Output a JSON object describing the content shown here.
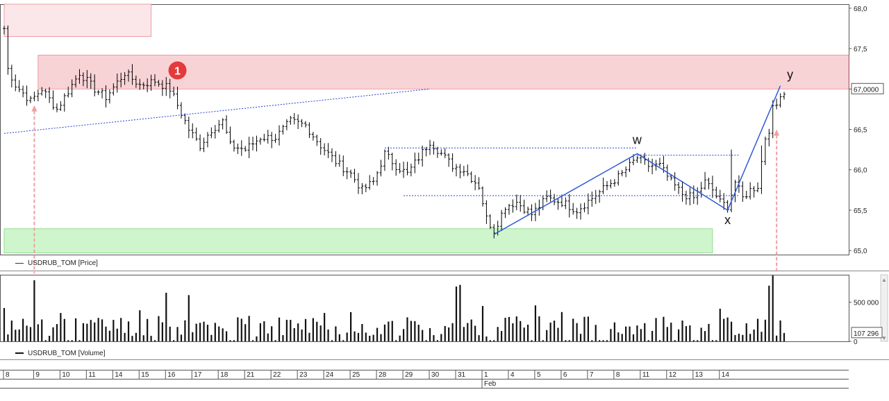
{
  "chart_data": [
    {
      "type": "ohlc",
      "series_label": "USDRUB_TOM [Price]",
      "y_ticks": [
        "68,0",
        "67,5",
        "67,0000",
        "66,5",
        "66,0",
        "65,5",
        "65,0"
      ],
      "ylim": [
        64.95,
        68.05
      ],
      "last_value_label": "67,0000",
      "zones": [
        {
          "type": "resistance",
          "start_bar": 0,
          "end_bar": 39,
          "from": 67.65,
          "to": 68.05,
          "color": "#fbe7ea"
        },
        {
          "type": "resistance",
          "start_bar": 9,
          "end_bar": 221,
          "from": 67.0,
          "to": 67.42,
          "color": "#f8d3d6"
        },
        {
          "type": "support",
          "start_bar": 0,
          "end_bar": 188,
          "from": 64.97,
          "to": 65.27,
          "color": "#cff5cc"
        }
      ],
      "wave_points": [
        {
          "label": "",
          "bar": 130,
          "value": 65.2
        },
        {
          "label": "w",
          "bar": 168,
          "value": 66.2
        },
        {
          "label": "x",
          "bar": 192,
          "value": 65.5
        },
        {
          "label": "y",
          "bar": 206,
          "value": 67.04
        }
      ],
      "marker": {
        "label": "1",
        "bar": 46,
        "value": 67.23
      },
      "dotted_lines": [
        {
          "from_bar": 0,
          "from_value": 66.45,
          "to_bar": 113,
          "to_value": 67.0
        },
        {
          "from_bar": 101,
          "from_value": 66.27,
          "to_bar": 168,
          "to_value": 66.27
        },
        {
          "from_bar": 106,
          "from_value": 65.68,
          "to_bar": 195,
          "to_value": 65.68
        },
        {
          "from_bar": 168,
          "from_value": 66.18,
          "to_bar": 195,
          "to_value": 66.18
        }
      ],
      "anchors": [
        {
          "bar": 0,
          "value": 67.75
        },
        {
          "bar": 1,
          "value": 67.25
        },
        {
          "bar": 3,
          "value": 67.05
        },
        {
          "bar": 7,
          "value": 66.85
        },
        {
          "bar": 10,
          "value": 67.0
        },
        {
          "bar": 14,
          "value": 66.75
        },
        {
          "bar": 18,
          "value": 67.05
        },
        {
          "bar": 20,
          "value": 67.2
        },
        {
          "bar": 24,
          "value": 67.0
        },
        {
          "bar": 27,
          "value": 66.9
        },
        {
          "bar": 32,
          "value": 67.2
        },
        {
          "bar": 36,
          "value": 67.05
        },
        {
          "bar": 40,
          "value": 67.1
        },
        {
          "bar": 44,
          "value": 67.0
        },
        {
          "bar": 46,
          "value": 66.8
        },
        {
          "bar": 49,
          "value": 66.5
        },
        {
          "bar": 52,
          "value": 66.3
        },
        {
          "bar": 55,
          "value": 66.5
        },
        {
          "bar": 58,
          "value": 66.6
        },
        {
          "bar": 60,
          "value": 66.3
        },
        {
          "bar": 64,
          "value": 66.25
        },
        {
          "bar": 68,
          "value": 66.4
        },
        {
          "bar": 72,
          "value": 66.4
        },
        {
          "bar": 76,
          "value": 66.6
        },
        {
          "bar": 80,
          "value": 66.55
        },
        {
          "bar": 84,
          "value": 66.3
        },
        {
          "bar": 88,
          "value": 66.1
        },
        {
          "bar": 92,
          "value": 65.95
        },
        {
          "bar": 95,
          "value": 65.75
        },
        {
          "bar": 98,
          "value": 65.85
        },
        {
          "bar": 101,
          "value": 66.2
        },
        {
          "bar": 104,
          "value": 66.05
        },
        {
          "bar": 107,
          "value": 65.95
        },
        {
          "bar": 110,
          "value": 66.15
        },
        {
          "bar": 113,
          "value": 66.35
        },
        {
          "bar": 116,
          "value": 66.2
        },
        {
          "bar": 119,
          "value": 66.05
        },
        {
          "bar": 122,
          "value": 66.0
        },
        {
          "bar": 126,
          "value": 65.8
        },
        {
          "bar": 128,
          "value": 65.4
        },
        {
          "bar": 130,
          "value": 65.25
        },
        {
          "bar": 133,
          "value": 65.55
        },
        {
          "bar": 136,
          "value": 65.6
        },
        {
          "bar": 140,
          "value": 65.45
        },
        {
          "bar": 144,
          "value": 65.65
        },
        {
          "bar": 148,
          "value": 65.6
        },
        {
          "bar": 152,
          "value": 65.5
        },
        {
          "bar": 156,
          "value": 65.65
        },
        {
          "bar": 160,
          "value": 65.8
        },
        {
          "bar": 164,
          "value": 65.95
        },
        {
          "bar": 168,
          "value": 66.15
        },
        {
          "bar": 171,
          "value": 66.05
        },
        {
          "bar": 174,
          "value": 66.05
        },
        {
          "bar": 177,
          "value": 65.85
        },
        {
          "bar": 180,
          "value": 65.7
        },
        {
          "bar": 183,
          "value": 65.65
        },
        {
          "bar": 186,
          "value": 65.85
        },
        {
          "bar": 188,
          "value": 65.75
        },
        {
          "bar": 190,
          "value": 65.6
        },
        {
          "bar": 192,
          "value": 65.55
        },
        {
          "bar": 194,
          "value": 65.85
        },
        {
          "bar": 196,
          "value": 65.65
        },
        {
          "bar": 198,
          "value": 65.75
        },
        {
          "bar": 200,
          "value": 65.8
        },
        {
          "bar": 202,
          "value": 66.4
        },
        {
          "bar": 203,
          "value": 66.5
        },
        {
          "bar": 204,
          "value": 66.75
        },
        {
          "bar": 205,
          "value": 66.8
        },
        {
          "bar": 206,
          "value": 66.95
        }
      ],
      "spikes": [
        {
          "bar": 193,
          "high": 66.25
        },
        {
          "bar": 201,
          "high": 66.3
        }
      ]
    },
    {
      "type": "bar",
      "series_label": "USDRUB_TOM [Volume]",
      "y_ticks": [
        "500 000",
        "0"
      ],
      "ylim": [
        0,
        850000
      ],
      "last_value_label": "107 296",
      "peaks": [
        {
          "bar": 8,
          "value": 780000
        },
        {
          "bar": 43,
          "value": 620000
        },
        {
          "bar": 49,
          "value": 590000
        },
        {
          "bar": 120,
          "value": 700000
        },
        {
          "bar": 121,
          "value": 720000
        },
        {
          "bar": 203,
          "value": 710000
        },
        {
          "bar": 204,
          "value": 840000
        }
      ],
      "volume_scale": 300000,
      "last_value": 107296
    }
  ],
  "x_axis": {
    "bars": 208,
    "day_labels": [
      "8",
      "9",
      "10",
      "11",
      "14",
      "15",
      "16",
      "17",
      "18",
      "21",
      "22",
      "23",
      "24",
      "25",
      "28",
      "29",
      "30",
      "31",
      "1",
      "4",
      "5",
      "6",
      "7",
      "8",
      "11",
      "12",
      "13",
      "14"
    ],
    "day_starts": [
      0,
      8,
      15,
      22,
      29,
      36,
      43,
      50,
      57,
      64,
      71,
      78,
      85,
      92,
      99,
      106,
      113,
      120,
      127,
      134,
      141,
      148,
      155,
      162,
      169,
      176,
      183,
      190
    ],
    "month_label": "Feb",
    "month_start_bar": 127
  },
  "arrows": [
    {
      "bar": 8,
      "from_value": 66.8,
      "to_volume": 900000
    },
    {
      "bar": 205,
      "from_value": 66.5,
      "to_volume": 900000
    }
  ],
  "colors": {
    "bars": "#000000",
    "wave": "#2e5ad8",
    "dotted": "#1f3fd0",
    "marker": "#e33b3b",
    "arrow": "#f0a0a0"
  }
}
